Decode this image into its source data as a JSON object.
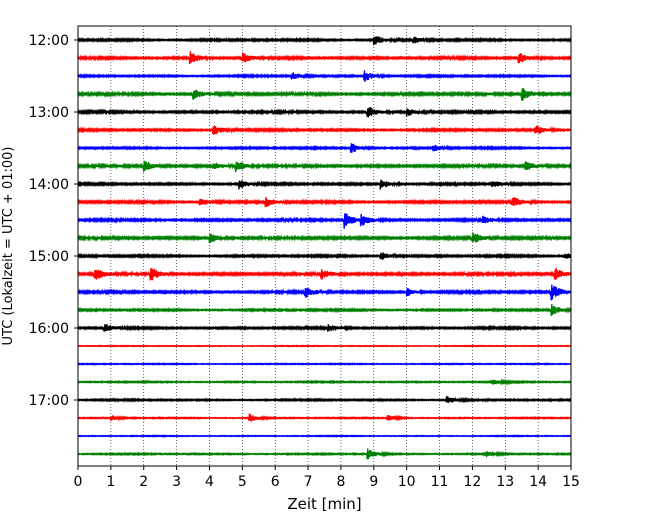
{
  "chart_data": {
    "type": "line",
    "chart_kind": "helicorder",
    "xlabel": "Zeit  [min]",
    "ylabel": "UTC (Lokalzeit = UTC + 01:00)",
    "xlim": [
      0,
      15
    ],
    "x_ticks": [
      0,
      1,
      2,
      3,
      4,
      5,
      6,
      7,
      8,
      9,
      10,
      11,
      12,
      13,
      14,
      15
    ],
    "y_tick_labels": [
      "12:00",
      "13:00",
      "14:00",
      "15:00",
      "16:00",
      "17:00"
    ],
    "grid": "vertical dotted lines at each minute",
    "color_cycle": [
      "#000000",
      "#ff0000",
      "#0000ff",
      "#008000"
    ],
    "series": [
      {
        "start": "12:00",
        "amp": 0.9,
        "color": "#000000",
        "events": [
          {
            "t": 9.0,
            "a": 1.6
          },
          {
            "t": 10.2,
            "a": 1.0
          }
        ]
      },
      {
        "start": "12:15",
        "amp": 1.0,
        "color": "#ff0000",
        "events": [
          {
            "t": 3.4,
            "a": 2.0
          },
          {
            "t": 5.0,
            "a": 1.6
          },
          {
            "t": 13.4,
            "a": 1.8
          }
        ]
      },
      {
        "start": "12:30",
        "amp": 0.8,
        "color": "#0000ff",
        "events": [
          {
            "t": 6.5,
            "a": 1.2
          },
          {
            "t": 8.7,
            "a": 1.9
          }
        ]
      },
      {
        "start": "12:45",
        "amp": 1.1,
        "color": "#008000",
        "events": [
          {
            "t": 3.5,
            "a": 1.8
          },
          {
            "t": 13.5,
            "a": 2.2
          }
        ]
      },
      {
        "start": "13:00",
        "amp": 1.0,
        "color": "#000000",
        "events": [
          {
            "t": 8.8,
            "a": 1.8
          },
          {
            "t": 10.0,
            "a": 1.3
          }
        ]
      },
      {
        "start": "13:15",
        "amp": 0.9,
        "color": "#ff0000",
        "events": [
          {
            "t": 4.1,
            "a": 1.8
          },
          {
            "t": 13.9,
            "a": 1.6
          }
        ]
      },
      {
        "start": "13:30",
        "amp": 0.8,
        "color": "#0000ff",
        "events": [
          {
            "t": 8.3,
            "a": 1.8
          },
          {
            "t": 10.8,
            "a": 1.2
          }
        ]
      },
      {
        "start": "13:45",
        "amp": 1.1,
        "color": "#008000",
        "events": [
          {
            "t": 2.0,
            "a": 1.8
          },
          {
            "t": 4.1,
            "a": 1.4
          },
          {
            "t": 4.8,
            "a": 1.9
          },
          {
            "t": 13.6,
            "a": 1.8
          }
        ]
      },
      {
        "start": "14:00",
        "amp": 0.9,
        "color": "#000000",
        "events": [
          {
            "t": 4.9,
            "a": 1.4
          },
          {
            "t": 9.2,
            "a": 1.6
          },
          {
            "t": 12.6,
            "a": 1.1
          }
        ]
      },
      {
        "start": "14:15",
        "amp": 1.0,
        "color": "#ff0000",
        "events": [
          {
            "t": 3.7,
            "a": 1.3
          },
          {
            "t": 5.7,
            "a": 1.6
          },
          {
            "t": 13.2,
            "a": 1.7
          }
        ]
      },
      {
        "start": "14:30",
        "amp": 1.0,
        "color": "#0000ff",
        "events": [
          {
            "t": 8.1,
            "a": 2.6
          },
          {
            "t": 8.6,
            "a": 1.8
          },
          {
            "t": 12.3,
            "a": 1.0
          },
          {
            "t": 15.0,
            "a": 1.5
          }
        ]
      },
      {
        "start": "14:45",
        "amp": 1.1,
        "color": "#008000",
        "events": [
          {
            "t": 4.0,
            "a": 1.6
          },
          {
            "t": 12.0,
            "a": 1.9
          }
        ]
      },
      {
        "start": "15:00",
        "amp": 0.9,
        "color": "#000000",
        "events": [
          {
            "t": 9.2,
            "a": 1.4
          },
          {
            "t": 14.8,
            "a": 1.0
          }
        ]
      },
      {
        "start": "15:15",
        "amp": 1.1,
        "color": "#ff0000",
        "events": [
          {
            "t": 0.5,
            "a": 2.0
          },
          {
            "t": 2.2,
            "a": 2.4
          },
          {
            "t": 7.4,
            "a": 1.5
          },
          {
            "t": 14.5,
            "a": 2.0
          }
        ]
      },
      {
        "start": "15:30",
        "amp": 1.0,
        "color": "#0000ff",
        "events": [
          {
            "t": 6.9,
            "a": 2.0
          },
          {
            "t": 10.0,
            "a": 1.3
          },
          {
            "t": 14.4,
            "a": 2.6
          }
        ]
      },
      {
        "start": "15:45",
        "amp": 0.8,
        "color": "#008000",
        "events": [
          {
            "t": 14.4,
            "a": 1.8
          }
        ]
      },
      {
        "start": "16:00",
        "amp": 0.9,
        "color": "#000000",
        "events": [
          {
            "t": 0.8,
            "a": 1.3
          },
          {
            "t": 7.6,
            "a": 1.2
          }
        ]
      },
      {
        "start": "16:15",
        "amp": 0.35,
        "color": "#ff0000",
        "events": []
      },
      {
        "start": "16:30",
        "amp": 0.45,
        "color": "#0000ff",
        "events": []
      },
      {
        "start": "16:45",
        "amp": 0.6,
        "color": "#008000",
        "events": [
          {
            "t": 12.6,
            "a": 0.8
          }
        ]
      },
      {
        "start": "17:00",
        "amp": 0.7,
        "color": "#000000",
        "events": [
          {
            "t": 11.2,
            "a": 1.2
          }
        ]
      },
      {
        "start": "17:15",
        "amp": 0.5,
        "color": "#ff0000",
        "events": [
          {
            "t": 1.0,
            "a": 0.8
          },
          {
            "t": 5.2,
            "a": 1.4
          },
          {
            "t": 9.4,
            "a": 1.1
          }
        ]
      },
      {
        "start": "17:30",
        "amp": 0.4,
        "color": "#0000ff",
        "events": []
      },
      {
        "start": "17:45",
        "amp": 0.6,
        "color": "#008000",
        "events": [
          {
            "t": 8.8,
            "a": 1.8
          },
          {
            "t": 12.4,
            "a": 0.9
          }
        ]
      }
    ]
  }
}
